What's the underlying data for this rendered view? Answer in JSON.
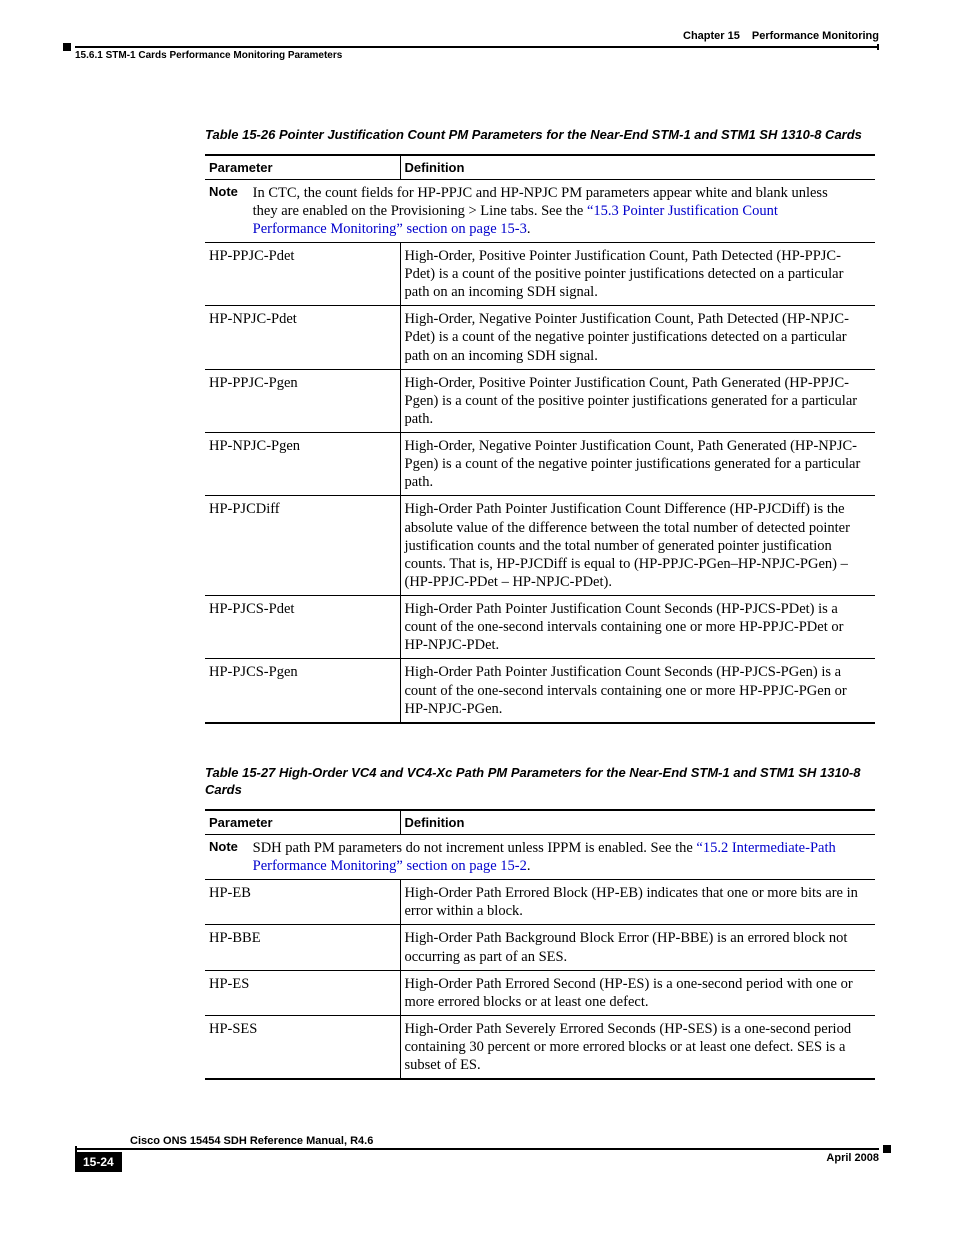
{
  "header": {
    "chapter_label": "Chapter 15",
    "chapter_title": "Performance Monitoring",
    "section": "15.6.1  STM-1 Cards Performance Monitoring Parameters"
  },
  "table26": {
    "caption": "Table 15-26 Pointer Justification Count PM Parameters for the Near-End STM-1 and STM1 SH 1310-8 Cards",
    "col1": "Parameter",
    "col2": "Definition",
    "note_label": "Note",
    "note_text_pre": "In CTC, the count fields for HP-PPJC and HP-NPJC PM parameters appear white and blank unless they are enabled on the Provisioning > Line tabs. See the ",
    "note_link": "“15.3  Pointer Justification Count Performance Monitoring” section on page 15-3",
    "note_text_post": ".",
    "rows": [
      {
        "param": "HP-PPJC-Pdet",
        "def": "High-Order, Positive Pointer Justification Count, Path Detected (HP-PPJC-Pdet) is a count of the positive pointer justifications detected on a particular path on an incoming SDH signal."
      },
      {
        "param": "HP-NPJC-Pdet",
        "def": "High-Order, Negative Pointer Justification Count, Path Detected (HP-NPJC-Pdet) is a count of the negative pointer justifications detected on a particular path on an incoming SDH signal."
      },
      {
        "param": "HP-PPJC-Pgen",
        "def": "High-Order, Positive Pointer Justification Count, Path Generated (HP-PPJC-Pgen) is a count of the positive pointer justifications generated for a particular path."
      },
      {
        "param": "HP-NPJC-Pgen",
        "def": "High-Order, Negative Pointer Justification Count, Path Generated (HP-NPJC-Pgen) is a count of the negative pointer justifications generated for a particular path."
      },
      {
        "param": "HP-PJCDiff",
        "def": "High-Order Path Pointer Justification Count Difference (HP-PJCDiff) is the absolute value of the difference between the total number of detected pointer justification counts and the total number of generated pointer justification counts. That is, HP-PJCDiff is equal to (HP-PPJC-PGen–HP-NPJC-PGen) – (HP-PPJC-PDet – HP-NPJC-PDet)."
      },
      {
        "param": "HP-PJCS-Pdet",
        "def": "High-Order Path Pointer Justification Count Seconds (HP-PJCS-PDet) is a count of the one-second intervals containing one or more HP-PPJC-PDet or HP-NPJC-PDet."
      },
      {
        "param": "HP-PJCS-Pgen",
        "def": "High-Order Path Pointer Justification Count Seconds (HP-PJCS-PGen) is a count of the one-second intervals containing one or more HP-PPJC-PGen or HP-NPJC-PGen."
      }
    ]
  },
  "table27": {
    "caption": "Table 15-27 High-Order VC4 and VC4-Xc Path PM Parameters for the Near-End STM-1 and STM1 SH 1310-8 Cards",
    "col1": "Parameter",
    "col2": "Definition",
    "note_label": "Note",
    "note_text_pre": "SDH path PM parameters do not increment unless IPPM is enabled. See the ",
    "note_link": "“15.2  Intermediate-Path Performance Monitoring” section on page 15-2",
    "note_text_post": ".",
    "rows": [
      {
        "param": "HP-EB",
        "def": "High-Order Path Errored Block (HP-EB) indicates that one or more bits are in error within a block."
      },
      {
        "param": "HP-BBE",
        "def": "High-Order Path Background Block Error (HP-BBE) is an errored block not occurring as part of an SES."
      },
      {
        "param": "HP-ES",
        "def": "High-Order Path Errored Second (HP-ES) is a one-second period with one or more errored blocks or at least one defect."
      },
      {
        "param": "HP-SES",
        "def": "High-Order Path Severely Errored Seconds (HP-SES) is a one-second period containing 30 percent or more errored blocks or at least one defect. SES is a subset of ES."
      }
    ]
  },
  "footer": {
    "doc_title": "Cisco ONS 15454 SDH Reference Manual, R4.6",
    "page": "15-24",
    "date": "April 2008"
  }
}
